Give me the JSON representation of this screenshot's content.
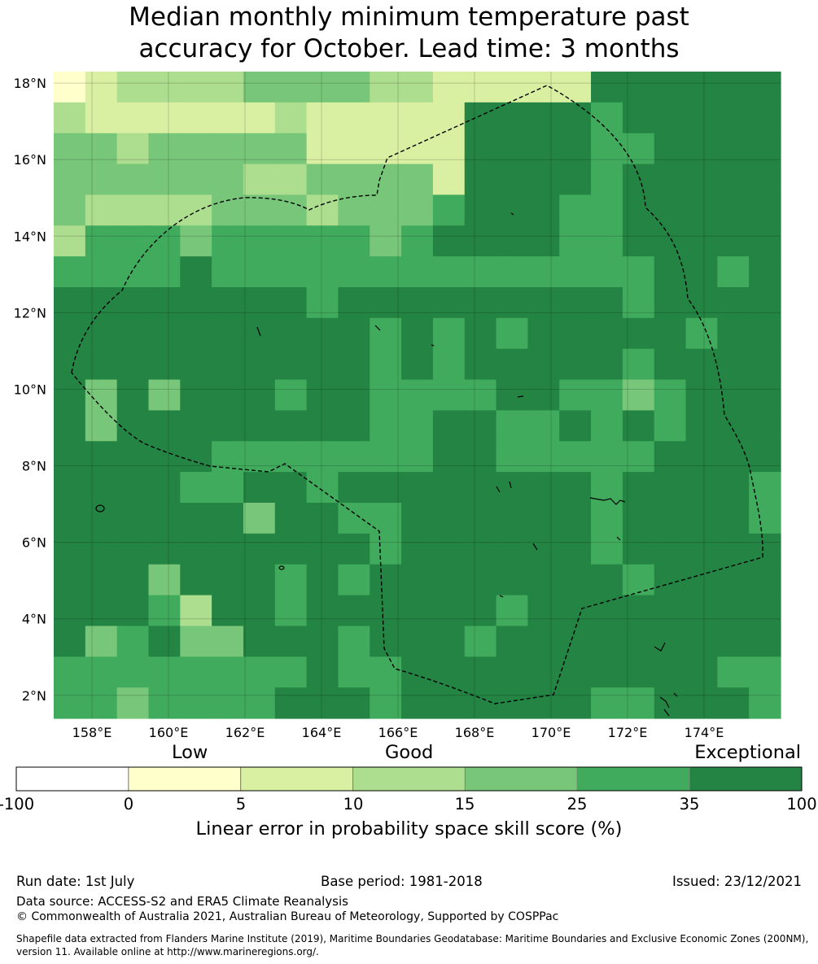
{
  "title_line1": "Median monthly minimum temperature past",
  "title_line2": "accuracy for October. Lead time: 3 months",
  "map": {
    "lon_ticks": [
      "158°E",
      "160°E",
      "162°E",
      "164°E",
      "166°E",
      "168°E",
      "170°E",
      "172°E",
      "174°E"
    ],
    "lat_ticks": [
      "18°N",
      "16°N",
      "14°N",
      "12°N",
      "10°N",
      "8°N",
      "6°N",
      "4°N",
      "2°N"
    ],
    "lon_range": [
      157,
      176
    ],
    "lat_range": [
      1.4,
      18.3
    ],
    "grid_cols": 23,
    "grid_rows": 21,
    "legend_colors": [
      "#ffffff",
      "#ffffcc",
      "#d9f0a3",
      "#addd8e",
      "#78c679",
      "#41ab5d",
      "#238443"
    ],
    "skill_grid": [
      "12333344443322222666666",
      "32222223222226666566666",
      "44344444222226666556666",
      "44444433444426666566666",
      "43333444344456665566666",
      "35554555554566665566666",
      "55556555555555555556656",
      "66666666566666666656666",
      "66666666665656566666566",
      "66666666665656666656666",
      "64646665665555665545666",
      "64666666665566556565666",
      "66666555555566555556666",
      "66665566566666666566665",
      "66666646655666666566665",
      "66666666665666666566666",
      "66646665656666666656666",
      "66653665666666566666666",
      "64564466656665666666666",
      "55555555655666666666655",
      "55455556665666666556665"
    ]
  },
  "colorbar": {
    "categories": [
      "Low",
      "Good",
      "Exceptional"
    ],
    "tick_labels": [
      "-100",
      "0",
      "5",
      "10",
      "15",
      "25",
      "35",
      "100"
    ],
    "label": "Linear error in probability space skill score (%)"
  },
  "footer": {
    "run_date": "Run date: 1st July",
    "base_period": "Base period: 1981-2018",
    "issued": "Issued: 23/12/2021",
    "data_source": "Data source: ACCESS-S2 and ERA5 Climate Reanalysis",
    "copyright": "© Commonwealth of Australia 2021, Australian Bureau of Meteorology, Supported by COSPPac",
    "shapefile": "Shapefile data extracted from Flanders Marine Institute (2019), Maritime Boundaries Geodatabase: Maritime Boundaries and Exclusive Economic Zones (200NM), version 11. Available online at http://www.marineregions.org/."
  }
}
